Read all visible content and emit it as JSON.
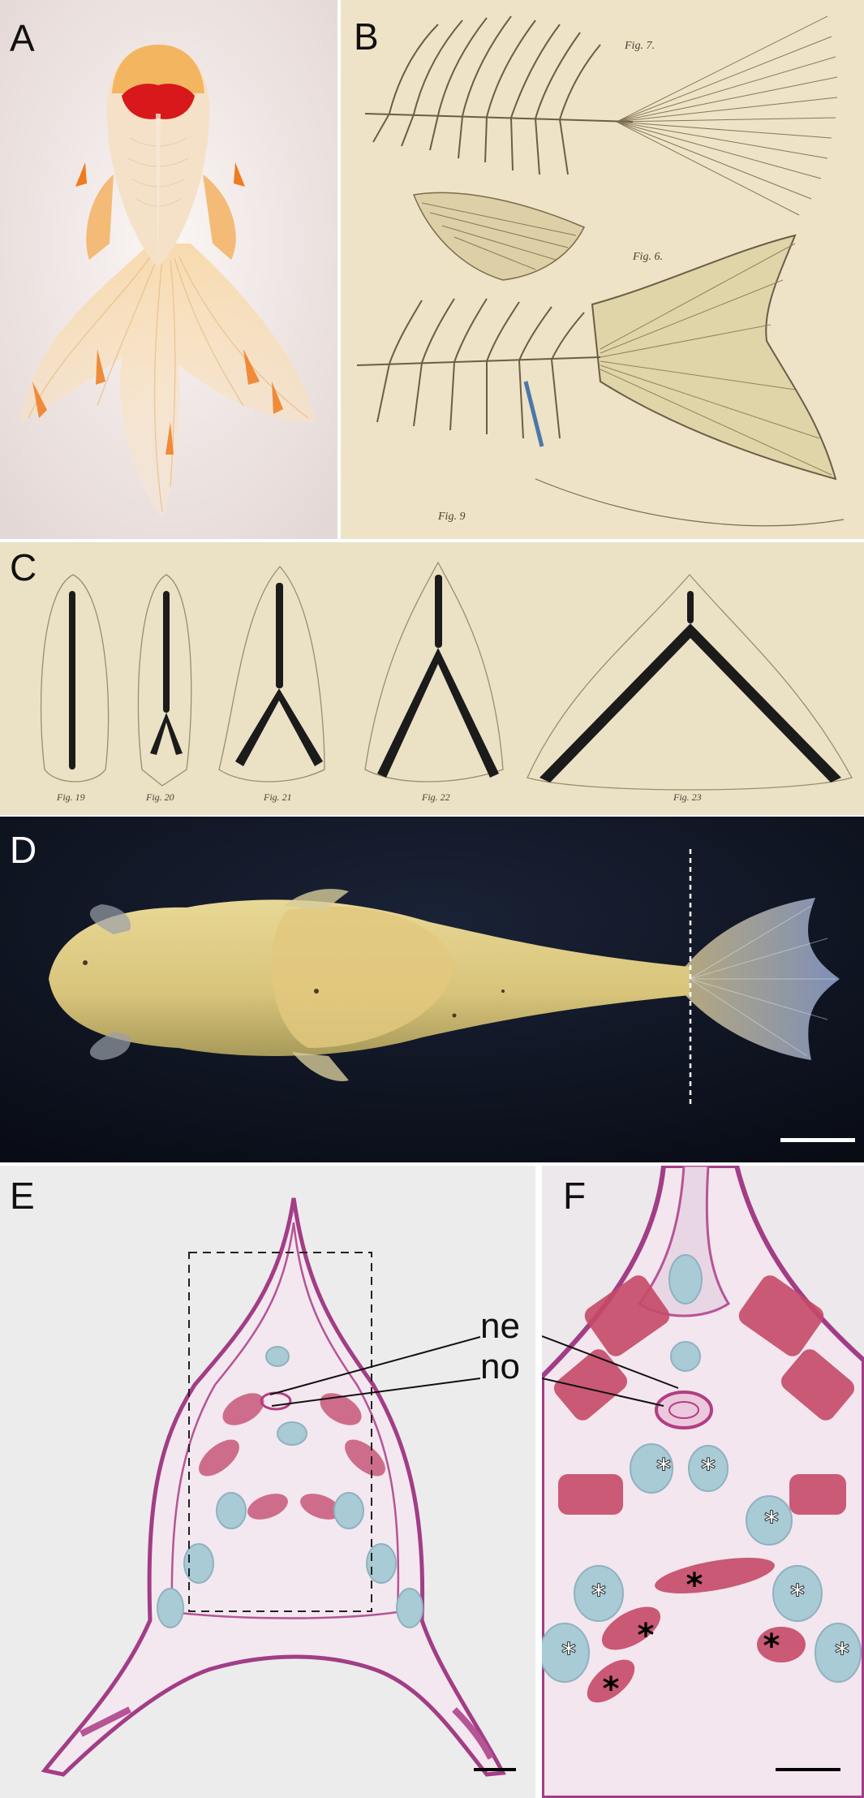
{
  "panels": {
    "a": {
      "label": "A"
    },
    "b": {
      "label": "B",
      "fig_labels": [
        "Fig. 6.",
        "Fig. 7.",
        "Fig. 9"
      ]
    },
    "c": {
      "label": "C",
      "fig_labels": [
        "Fig. 19",
        "Fig. 20",
        "Fig. 21",
        "Fig. 22",
        "Fig. 23"
      ]
    },
    "d": {
      "label": "D"
    },
    "e": {
      "label": "E",
      "annotations": [
        "ne",
        "no"
      ]
    },
    "f": {
      "label": "F"
    }
  },
  "colors": {
    "goldfish_bg": "#f1e9e8",
    "plate_bg": "#efe6cf",
    "dark_bg": "#0d1220",
    "tissue_pink": "#b04d8a",
    "cartilage_blue": "#a8cbd6"
  }
}
